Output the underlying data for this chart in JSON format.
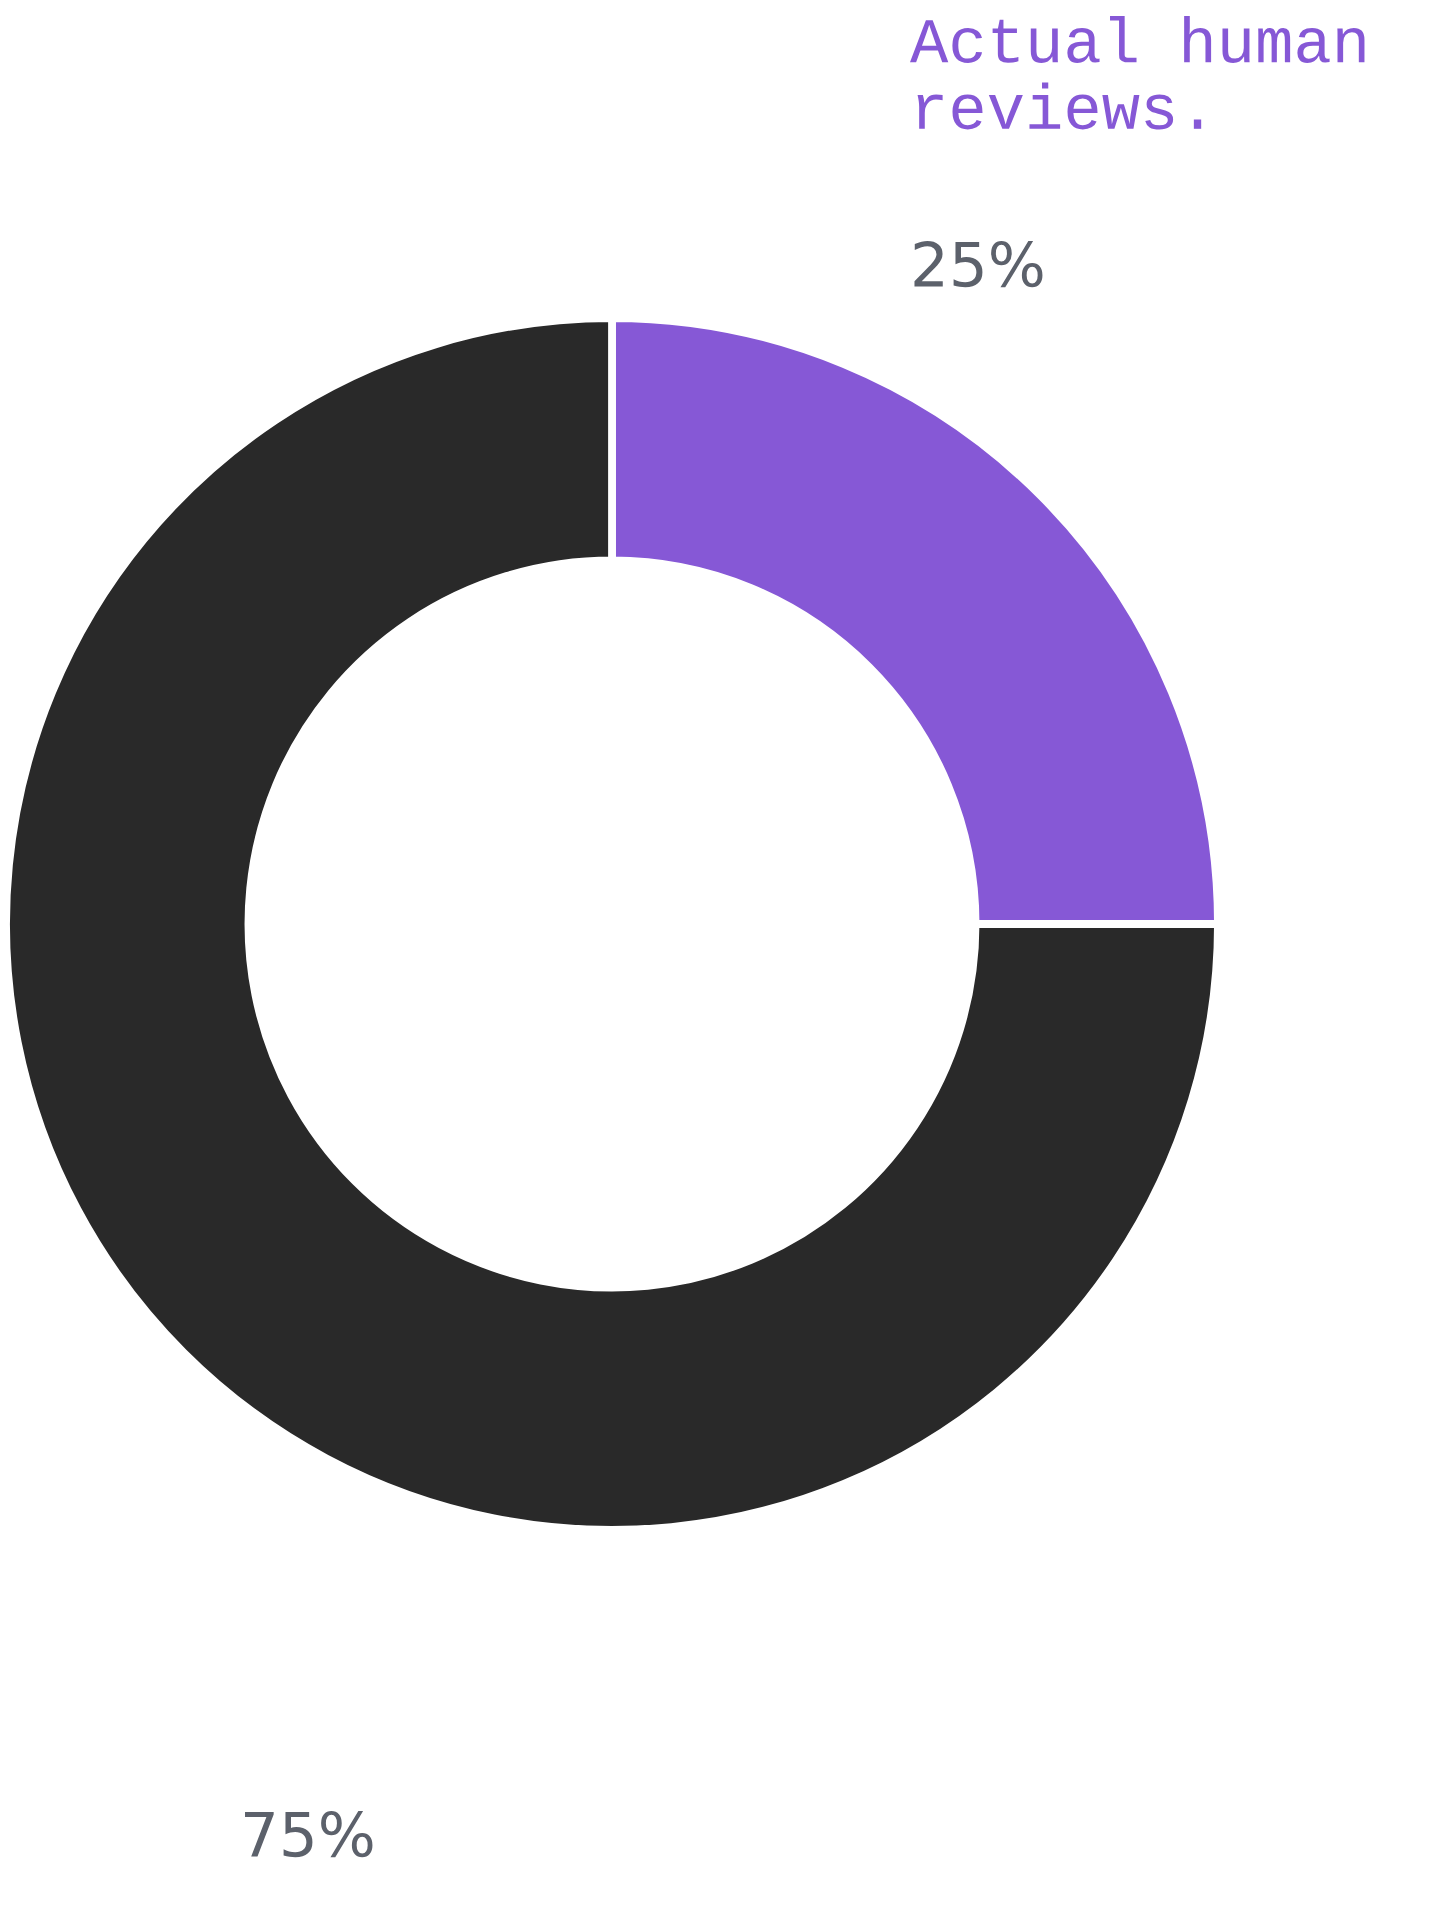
{
  "chart_data": {
    "type": "donut",
    "categories": [
      "Actual human\nreviews.",
      null
    ],
    "values": [
      25,
      75
    ],
    "colors": [
      "#8658d6",
      "#292929"
    ],
    "value_labels": [
      "25%",
      "75%"
    ],
    "legend": false
  }
}
